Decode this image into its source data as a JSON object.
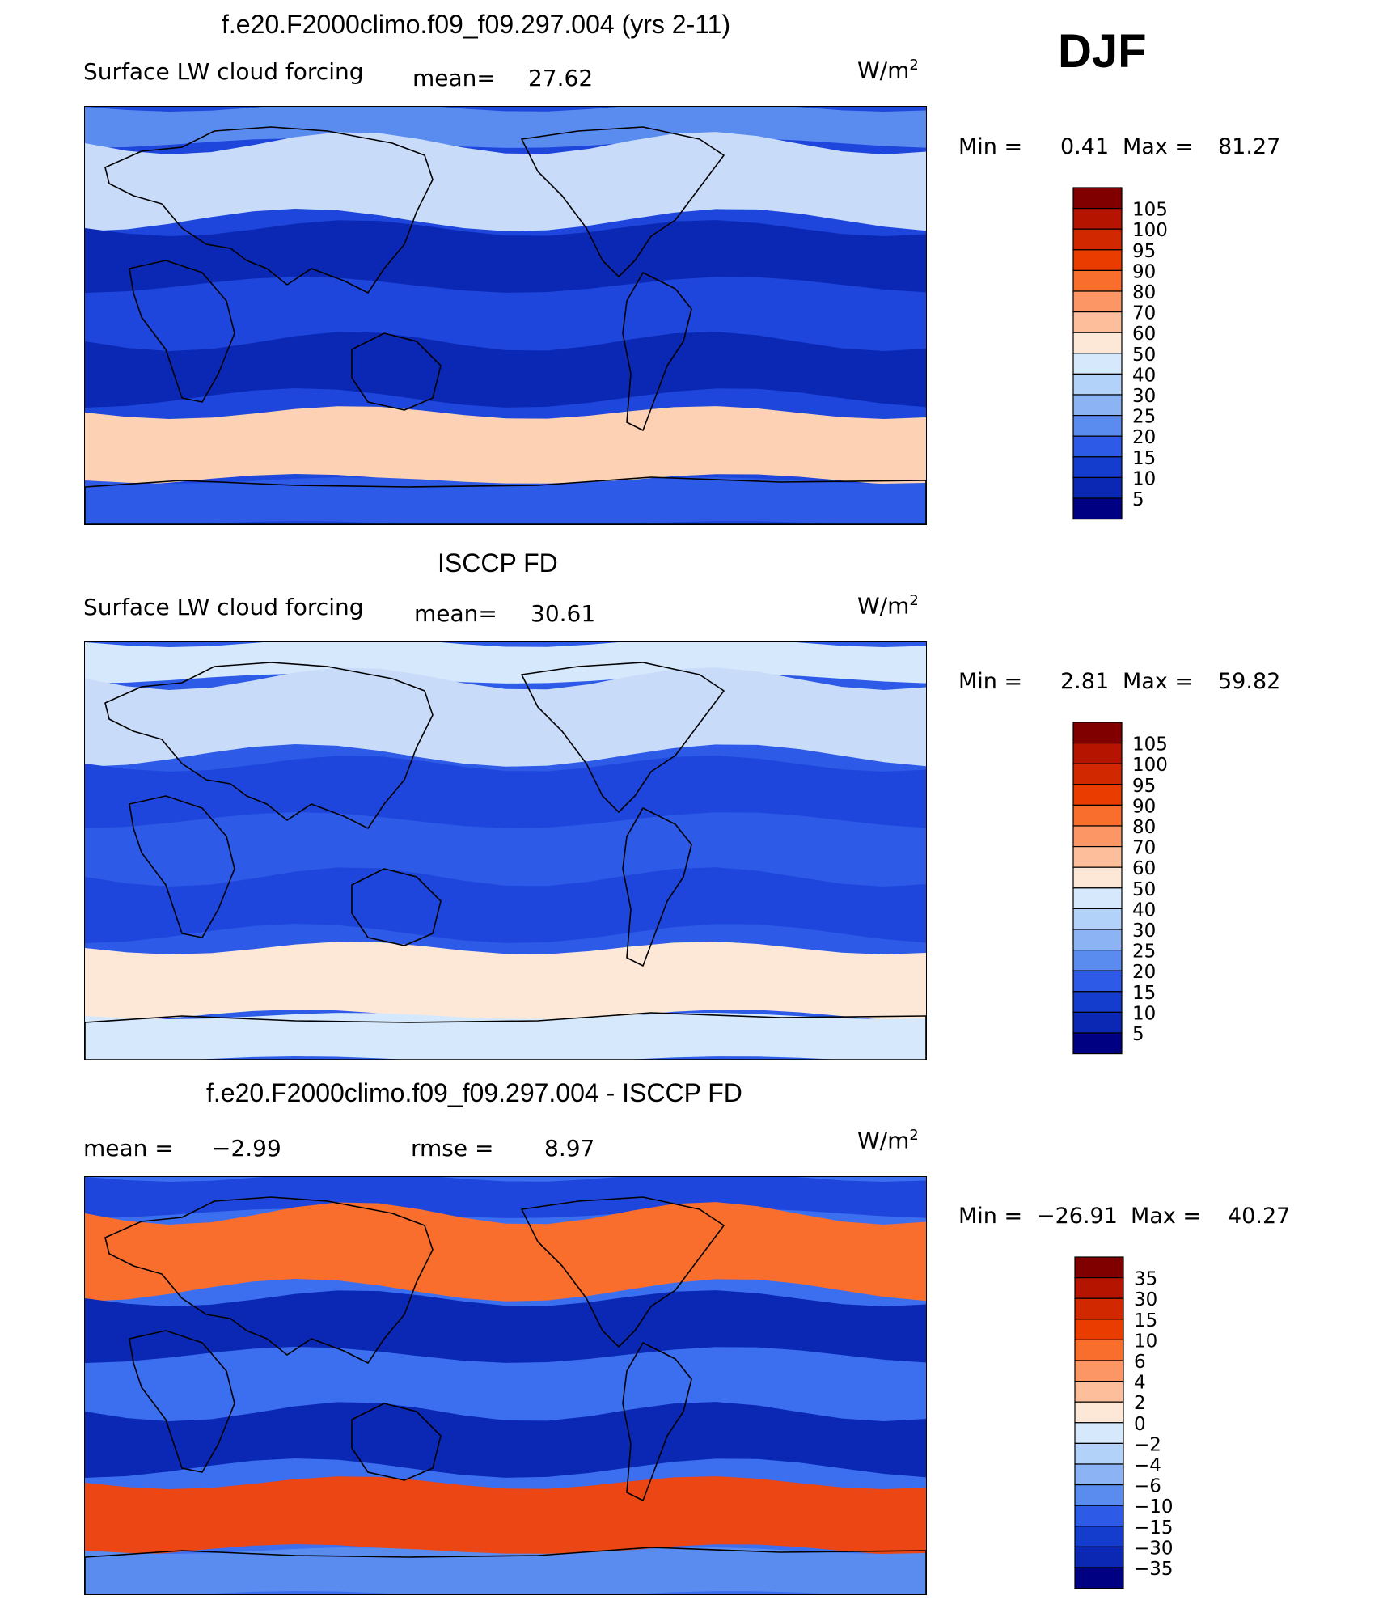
{
  "season": "DJF",
  "chart_data": [
    {
      "type": "heatmap",
      "title": "f.e20.F2000climo.f09_f09.297.004 (yrs 2-11)",
      "variable": "Surface LW cloud forcing",
      "mean_label": "mean=",
      "mean": "27.62",
      "units": "W/m",
      "units_exp": "2",
      "min_label": "Min =",
      "min": "0.41",
      "max_label": "Max =",
      "max": "81.27",
      "levels": [
        "105",
        "100",
        "95",
        "90",
        "80",
        "70",
        "60",
        "50",
        "40",
        "30",
        "25",
        "20",
        "15",
        "10",
        "5"
      ]
    },
    {
      "type": "heatmap",
      "title": "ISCCP FD",
      "variable": "Surface LW cloud forcing",
      "mean_label": "mean=",
      "mean": "30.61",
      "units": "W/m",
      "units_exp": "2",
      "min_label": "Min =",
      "min": "2.81",
      "max_label": "Max =",
      "max": "59.82",
      "levels": [
        "105",
        "100",
        "95",
        "90",
        "80",
        "70",
        "60",
        "50",
        "40",
        "30",
        "25",
        "20",
        "15",
        "10",
        "5"
      ]
    },
    {
      "type": "heatmap",
      "title": "f.e20.F2000climo.f09_f09.297.004 - ISCCP FD",
      "mean_label": "mean =",
      "mean": "−2.99",
      "rmse_label": "rmse =",
      "rmse": "8.97",
      "units": "W/m",
      "units_exp": "2",
      "min_label": "Min =",
      "min": "−26.91",
      "max_label": "Max =",
      "max": "40.27",
      "levels": [
        "35",
        "30",
        "15",
        "10",
        "6",
        "4",
        "2",
        "0",
        "−2",
        "−4",
        "−6",
        "−10",
        "−15",
        "−30",
        "−35"
      ]
    }
  ],
  "palette": [
    "#800000",
    "#b41400",
    "#d22800",
    "#eb3c00",
    "#fa6e2d",
    "#fc9664",
    "#fdbe9b",
    "#fde8d8",
    "#d6e8fc",
    "#b2d2fa",
    "#8cb4f5",
    "#5a8cf0",
    "#2d5ae6",
    "#143ccd",
    "#0a28b4",
    "#000082"
  ],
  "map_colors": {
    "model": {
      "base": "#1e46dc",
      "band_n": "#c8dcfa",
      "arctic": "#5a8cf0",
      "warm": "#fdd2b4",
      "deep": "#0a28b4",
      "ant": "#2d5ae6"
    },
    "obs": {
      "base": "#2d5ae6",
      "band_n": "#c8dcfa",
      "arctic": "#d6e8fc",
      "warm": "#fde8d8",
      "deep": "#1e46dc",
      "ant": "#d6e8fc"
    },
    "diff": {
      "base": "#3c6ef0",
      "band_n": "#fa6e2d",
      "arctic": "#1e46dc",
      "warm": "#eb4614",
      "deep": "#0a28b4",
      "ant": "#5a8cf0"
    }
  }
}
